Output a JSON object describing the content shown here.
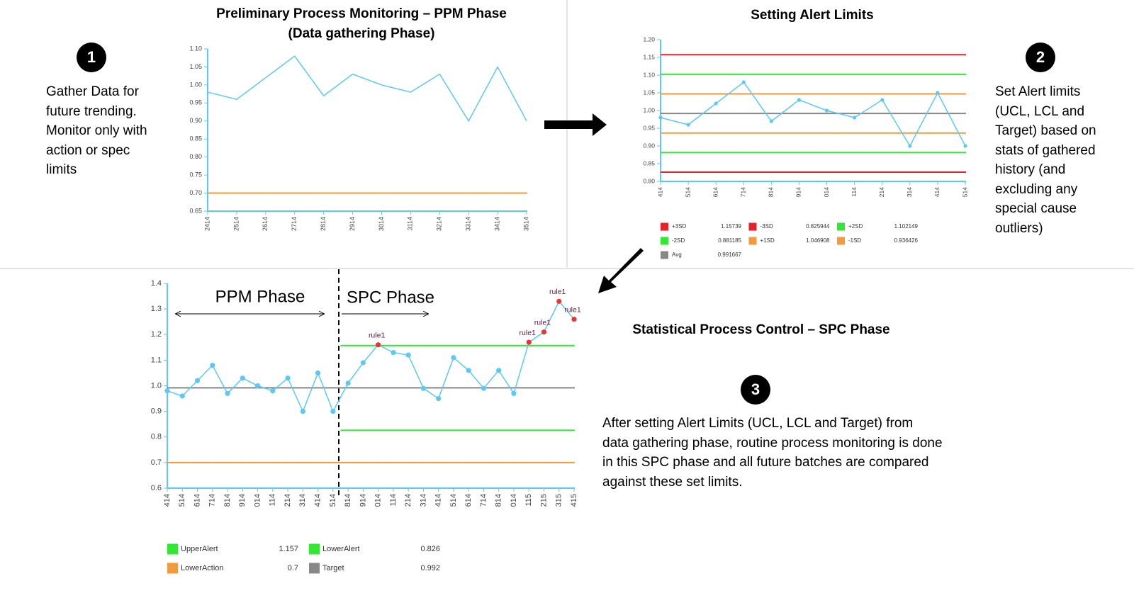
{
  "chart_data": [
    {
      "type": "line",
      "title": "Preliminary Process Monitoring – PPM Phase",
      "subtitle": "(Data gathering Phase)",
      "categories": [
        "2414",
        "2514",
        "2614",
        "2714",
        "2814",
        "2914",
        "3014",
        "3114",
        "3214",
        "3314",
        "3414",
        "3514"
      ],
      "values": [
        0.98,
        0.96,
        1.02,
        1.08,
        0.97,
        1.03,
        1.0,
        0.98,
        1.03,
        0.9,
        1.05,
        0.9
      ],
      "color": "#5bc8f5",
      "ylim": [
        0.65,
        1.1
      ],
      "yticks": [
        0.65,
        {
          "value": 0.7,
          "label": "0.70"
        },
        0.75,
        {
          "value": 0.8,
          "label": "0.80"
        },
        0.85,
        {
          "value": 0.9,
          "label": "0.90"
        },
        0.95,
        {
          "value": 1,
          "label": "1.00"
        },
        1.05,
        {
          "value": 1.1,
          "label": "1.10"
        }
      ],
      "limits": [
        {
          "value": 0.7,
          "color": "#f39a3d"
        }
      ]
    },
    {
      "type": "line",
      "title": "Setting Alert Limits",
      "categories": [
        "414",
        "514",
        "614",
        "714",
        "814",
        "914",
        "014",
        "114",
        "214",
        "314",
        "414",
        "514"
      ],
      "values": [
        0.98,
        0.96,
        1.02,
        1.08,
        0.97,
        1.03,
        1.0,
        0.98,
        1.03,
        0.9,
        1.05,
        0.9
      ],
      "color": "#5bc8f5",
      "ylim": [
        0.8,
        1.2
      ],
      "yticks": [
        {
          "value": 0.8,
          "label": "0.80"
        },
        0.85,
        {
          "value": 0.9,
          "label": "0.90"
        },
        0.95,
        {
          "value": 1,
          "label": "1.00"
        },
        1.05,
        {
          "value": 1.1,
          "label": "1.10"
        },
        1.15,
        {
          "value": 1.2,
          "label": "1.20"
        }
      ],
      "limits": [
        {
          "name": "+3SD",
          "value": 1.15739,
          "color": "#e8202a"
        },
        {
          "name": "-3SD",
          "value": 0.825944,
          "color": "#e8202a"
        },
        {
          "name": "+2SD",
          "value": 1.102149,
          "color": "#33e833"
        },
        {
          "name": "-2SD",
          "value": 0.881185,
          "color": "#33e833"
        },
        {
          "name": "+1SD",
          "value": 1.046908,
          "color": "#f39a3d"
        },
        {
          "name": "-1SD",
          "value": 0.936426,
          "color": "#f39a3d"
        },
        {
          "name": "Avg",
          "value": 0.991667,
          "color": "#888888"
        }
      ]
    },
    {
      "type": "line",
      "title": "Statistical Process Control – SPC Phase",
      "color": "#5bc8f5",
      "flag_color": "#ee3333",
      "phases": [
        {
          "label": "PPM Phase",
          "categories": [
            "414",
            "514",
            "614",
            "714",
            "814",
            "914",
            "014",
            "114",
            "214",
            "314",
            "414",
            "514"
          ],
          "values": [
            0.98,
            0.96,
            1.02,
            1.08,
            0.97,
            1.03,
            1.0,
            0.98,
            1.03,
            0.9,
            1.05,
            0.9
          ]
        },
        {
          "label": "SPC Phase",
          "categories": [
            "814",
            "914",
            "014",
            "114",
            "214",
            "314",
            "414",
            "514",
            "614",
            "714",
            "814",
            "014",
            "115",
            "215",
            "315",
            "415"
          ],
          "values": [
            1.01,
            1.09,
            1.16,
            1.13,
            1.12,
            0.99,
            0.95,
            1.11,
            1.06,
            0.99,
            1.06,
            0.97,
            1.17,
            1.21,
            1.33,
            1.26
          ],
          "flags": [
            null,
            null,
            "rule1",
            null,
            null,
            null,
            null,
            null,
            null,
            null,
            null,
            null,
            "rule1",
            "rule1",
            "rule1",
            "rule1"
          ]
        }
      ],
      "ylim": [
        0.6,
        1.4
      ],
      "yticks": [
        0.6,
        0.7,
        0.8,
        0.9,
        {
          "value": 1,
          "label": "1.0"
        },
        1.1,
        1.2,
        1.3,
        1.4
      ],
      "limits": [
        {
          "name": "UpperAlert",
          "value": 1.157,
          "color": "#33e833",
          "phase": "SPC Phase"
        },
        {
          "name": "LowerAlert",
          "value": 0.826,
          "color": "#33e833",
          "phase": "SPC Phase"
        },
        {
          "name": "LowerAction",
          "value": 0.7,
          "color": "#f39a3d"
        },
        {
          "name": "Target",
          "value": 0.992,
          "color": "#888888"
        }
      ]
    }
  ],
  "steps": [
    {
      "number": "1",
      "text": "Gather Data for future trending. Monitor only with action or spec limits"
    },
    {
      "number": "2",
      "text": "Set Alert limits (UCL, LCL and Target) based on stats of gathered history (and excluding any special cause outliers)"
    },
    {
      "number": "3",
      "text": "After setting Alert Limits (UCL, LCL and Target) from data gathering phase, routine process monitoring is done in this SPC phase and all future batches are compared against these set limits."
    }
  ]
}
